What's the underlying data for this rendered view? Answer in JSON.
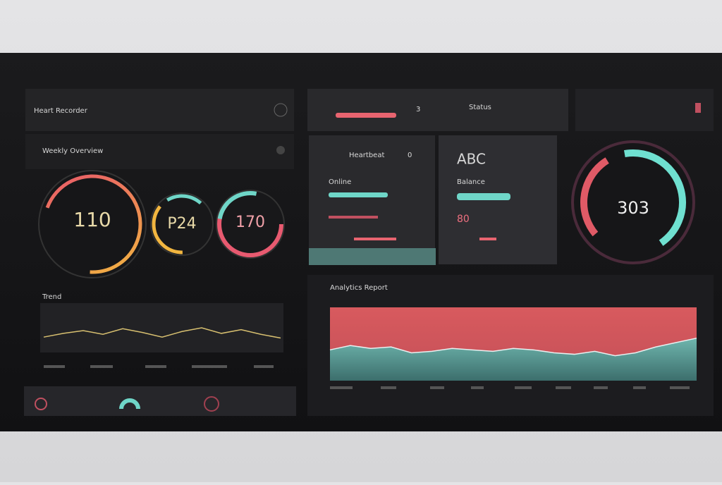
{
  "header": {
    "title": "Heart Recorder",
    "subtitle": "Weekly Overview"
  },
  "gauges": [
    {
      "value": "110"
    },
    {
      "value": "P24"
    },
    {
      "value": "170"
    }
  ],
  "trend": {
    "title": "Trend",
    "ylim": [
      0,
      100
    ],
    "values": [
      30,
      38,
      44,
      36,
      48,
      40,
      30,
      42,
      50,
      38,
      46,
      36,
      28
    ]
  },
  "top_bar": {
    "label": "Status",
    "value": "3"
  },
  "cards": [
    {
      "title": "Heartbeat",
      "label": "Online",
      "value": "0"
    },
    {
      "title": "ABC",
      "label": "Balance",
      "value": "80"
    }
  ],
  "big_gauge": {
    "value": "303"
  },
  "area": {
    "title": "Analytics Report",
    "ylim": [
      0,
      100
    ],
    "values": [
      42,
      48,
      44,
      46,
      38,
      40,
      44,
      42,
      40,
      44,
      42,
      38,
      36,
      40,
      34,
      38,
      46,
      52,
      58
    ]
  }
}
